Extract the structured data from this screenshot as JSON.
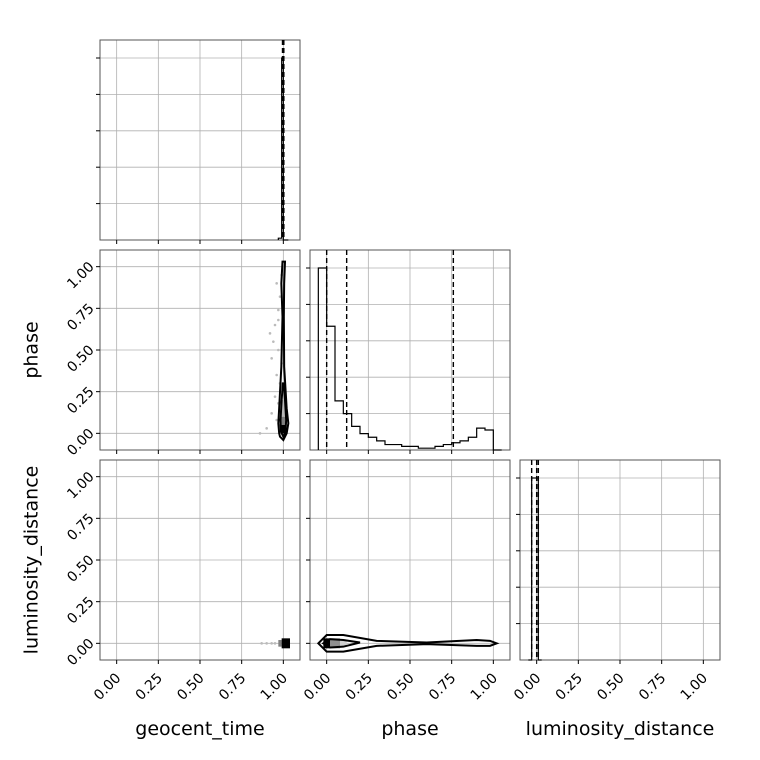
{
  "chart_data": {
    "type": "corner",
    "parameters": [
      "geocent_time",
      "phase",
      "luminosity_distance"
    ],
    "axis_labels": {
      "x": [
        "geocent_time",
        "phase",
        "luminosity_distance"
      ],
      "y": [
        "",
        "phase",
        "luminosity_distance"
      ]
    },
    "tick_values": [
      0.0,
      0.25,
      0.5,
      0.75,
      1.0
    ],
    "tick_labels": [
      "0.00",
      "0.25",
      "0.50",
      "0.75",
      "1.00"
    ],
    "axis_range": [
      -0.1,
      1.1
    ],
    "grid": true,
    "line_color": "#000000",
    "grid_color": "#b0b0b0",
    "histograms": [
      {
        "parameter": "geocent_time",
        "bin_edges": [
          0.97,
          0.99,
          1.0,
          1.03
        ],
        "counts": [
          0.01,
          1.0,
          0.0
        ],
        "quantiles": [
          0.995,
          1.0,
          1.003
        ]
      },
      {
        "parameter": "phase",
        "bin_edges": [
          -0.05,
          0.0,
          0.05,
          0.1,
          0.15,
          0.2,
          0.25,
          0.3,
          0.35,
          0.4,
          0.45,
          0.5,
          0.55,
          0.6,
          0.65,
          0.7,
          0.75,
          0.8,
          0.85,
          0.9,
          0.95,
          1.0,
          1.05
        ],
        "counts": [
          1.0,
          0.68,
          0.27,
          0.2,
          0.13,
          0.09,
          0.07,
          0.05,
          0.03,
          0.03,
          0.02,
          0.02,
          0.01,
          0.01,
          0.02,
          0.03,
          0.04,
          0.05,
          0.07,
          0.12,
          0.11,
          0.0
        ],
        "quantiles": [
          0.0,
          0.12,
          0.76
        ]
      },
      {
        "parameter": "luminosity_distance",
        "bin_edges": [
          -0.05,
          -0.03,
          0.01,
          0.03
        ],
        "counts": [
          0.0,
          1.0,
          0.0
        ],
        "quantiles": [
          -0.03,
          0.0,
          0.01
        ]
      }
    ],
    "scatter_2d": [
      {
        "x_param": "geocent_time",
        "y_param": "phase",
        "points": [
          [
            0.92,
            0.6
          ],
          [
            0.95,
            0.65
          ],
          [
            0.97,
            0.74
          ],
          [
            0.98,
            0.82
          ],
          [
            0.96,
            0.9
          ],
          [
            0.99,
            0.95
          ],
          [
            0.94,
            0.55
          ],
          [
            0.97,
            0.5
          ],
          [
            0.93,
            0.45
          ],
          [
            0.96,
            0.35
          ],
          [
            0.98,
            0.3
          ],
          [
            0.95,
            0.22
          ],
          [
            0.97,
            0.18
          ],
          [
            0.93,
            0.12
          ],
          [
            0.96,
            0.08
          ],
          [
            0.9,
            0.03
          ],
          [
            0.86,
            0.0
          ],
          [
            0.98,
            0.25
          ],
          [
            0.99,
            0.42
          ],
          [
            0.97,
            0.68
          ]
        ],
        "density_blocks": [
          {
            "x": [
              0.985,
              1.015
            ],
            "y": [
              0.0,
              0.05
            ],
            "shade": "#000000"
          },
          {
            "x": [
              0.985,
              1.015
            ],
            "y": [
              0.05,
              0.1
            ],
            "shade": "#808080"
          },
          {
            "x": [
              0.985,
              1.015
            ],
            "y": [
              0.1,
              0.2
            ],
            "shade": "#b8b8b8"
          }
        ],
        "contours": [
          [
            [
              0.975,
              0.0
            ],
            [
              0.97,
              0.06
            ],
            [
              0.975,
              0.15
            ],
            [
              0.988,
              0.4
            ],
            [
              0.995,
              0.7
            ],
            [
              0.988,
              0.9
            ],
            [
              0.995,
              1.03
            ],
            [
              1.01,
              1.03
            ],
            [
              1.005,
              0.9
            ],
            [
              1.003,
              0.7
            ],
            [
              1.005,
              0.4
            ],
            [
              1.02,
              0.15
            ],
            [
              1.03,
              0.06
            ],
            [
              1.02,
              0.0
            ],
            [
              1.0,
              -0.04
            ],
            [
              0.98,
              -0.02
            ]
          ],
          [
            [
              0.985,
              0.01
            ],
            [
              0.983,
              0.08
            ],
            [
              0.99,
              0.2
            ],
            [
              0.997,
              0.3
            ],
            [
              1.003,
              0.3
            ],
            [
              1.01,
              0.2
            ],
            [
              1.017,
              0.08
            ],
            [
              1.013,
              0.01
            ],
            [
              1.0,
              -0.02
            ]
          ]
        ]
      },
      {
        "x_param": "geocent_time",
        "y_param": "luminosity_distance",
        "points": [
          [
            0.87,
            0.0
          ],
          [
            0.9,
            0.0
          ],
          [
            0.93,
            0.0
          ],
          [
            0.95,
            0.0
          ]
        ],
        "density_blocks": [
          {
            "x": [
              0.97,
              0.99
            ],
            "y": [
              -0.02,
              0.02
            ],
            "shade": "#808080"
          },
          {
            "x": [
              0.99,
              1.04
            ],
            "y": [
              -0.03,
              0.03
            ],
            "shade": "#000000"
          }
        ],
        "contours": []
      },
      {
        "x_param": "phase",
        "y_param": "luminosity_distance",
        "points": [],
        "density_blocks": [
          {
            "x": [
              -0.02,
              0.02
            ],
            "y": [
              -0.03,
              0.03
            ],
            "shade": "#000000"
          },
          {
            "x": [
              0.02,
              0.08
            ],
            "y": [
              -0.03,
              0.03
            ],
            "shade": "#909090"
          },
          {
            "x": [
              0.08,
              0.12
            ],
            "y": [
              -0.015,
              0.015
            ],
            "shade": "#d0d0d0"
          }
        ],
        "contours": [
          [
            [
              -0.05,
              0.0
            ],
            [
              0.0,
              0.05
            ],
            [
              0.1,
              0.05
            ],
            [
              0.3,
              0.015
            ],
            [
              0.6,
              0.005
            ],
            [
              0.9,
              0.02
            ],
            [
              0.98,
              0.015
            ],
            [
              1.02,
              0.0
            ],
            [
              0.98,
              -0.015
            ],
            [
              0.9,
              -0.015
            ],
            [
              0.6,
              -0.005
            ],
            [
              0.3,
              -0.015
            ],
            [
              0.1,
              -0.05
            ],
            [
              0.0,
              -0.05
            ]
          ],
          [
            [
              -0.02,
              0.0
            ],
            [
              0.02,
              0.025
            ],
            [
              0.1,
              0.02
            ],
            [
              0.2,
              0.005
            ],
            [
              0.1,
              -0.02
            ],
            [
              0.02,
              -0.025
            ]
          ]
        ]
      }
    ]
  }
}
